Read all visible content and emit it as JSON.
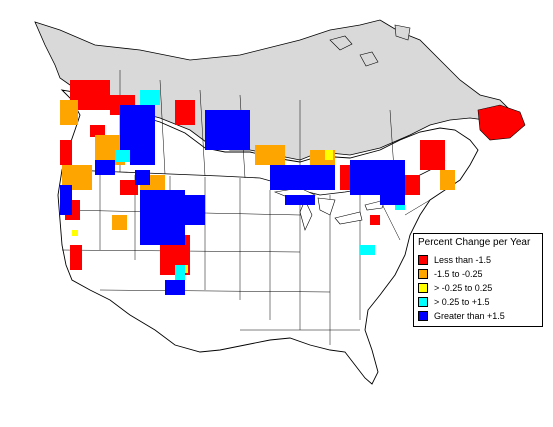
{
  "legend": {
    "title": "Percent Change per Year",
    "items": [
      {
        "label": "Less than -1.5",
        "color": "#ff0000"
      },
      {
        "label": "-1.5 to -0.25",
        "color": "#ffa500"
      },
      {
        "label": "> -0.25 to 0.25",
        "color": "#ffff00"
      },
      {
        "label": "> 0.25 to +1.5",
        "color": "#00ffff"
      },
      {
        "label": "Greater than +1.5",
        "color": "#0000ff"
      }
    ]
  },
  "colors": {
    "no_data_region": "#d9d9d9",
    "land": "#ffffff",
    "borders": "#000000"
  }
}
